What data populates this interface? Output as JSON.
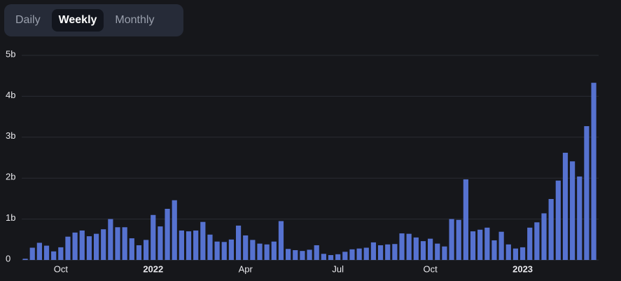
{
  "tabs": [
    "Daily",
    "Weekly",
    "Monthly"
  ],
  "chart_data": {
    "type": "bar",
    "categories": [
      null,
      null,
      null,
      null,
      null,
      "Oct",
      null,
      null,
      null,
      null,
      null,
      null,
      null,
      null,
      null,
      null,
      null,
      null,
      "2022",
      null,
      null,
      null,
      null,
      null,
      null,
      null,
      null,
      null,
      null,
      null,
      null,
      "Apr",
      null,
      null,
      null,
      null,
      null,
      null,
      null,
      null,
      null,
      null,
      null,
      null,
      "Jul",
      null,
      null,
      null,
      null,
      null,
      null,
      null,
      null,
      null,
      null,
      null,
      null,
      "Oct",
      null,
      null,
      null,
      null,
      null,
      null,
      null,
      null,
      null,
      null,
      null,
      null,
      "2023",
      null,
      null,
      null,
      null,
      null,
      null,
      null,
      null,
      null,
      null
    ],
    "values": [
      0.03,
      0.3,
      0.42,
      0.35,
      0.21,
      0.31,
      0.57,
      0.67,
      0.72,
      0.58,
      0.64,
      0.75,
      1.0,
      0.8,
      0.8,
      0.53,
      0.36,
      0.49,
      1.1,
      0.82,
      1.25,
      1.46,
      0.72,
      0.7,
      0.72,
      0.93,
      0.62,
      0.45,
      0.44,
      0.5,
      0.84,
      0.6,
      0.49,
      0.4,
      0.38,
      0.45,
      0.95,
      0.27,
      0.24,
      0.22,
      0.25,
      0.36,
      0.15,
      0.12,
      0.14,
      0.2,
      0.26,
      0.28,
      0.3,
      0.43,
      0.36,
      0.38,
      0.39,
      0.65,
      0.64,
      0.55,
      0.46,
      0.52,
      0.4,
      0.33,
      1.0,
      0.98,
      1.97,
      0.7,
      0.74,
      0.79,
      0.48,
      0.69,
      0.38,
      0.28,
      0.31,
      0.79,
      0.92,
      1.14,
      1.49,
      1.94,
      2.62,
      2.41,
      2.04,
      3.27,
      4.33
    ],
    "color": "#5672d0",
    "ylim": [
      0,
      5
    ],
    "yticks": [
      0,
      {
        "value": 1,
        "label": "1b"
      },
      {
        "value": 2,
        "label": "2b"
      },
      {
        "value": 3,
        "label": "3b"
      },
      {
        "value": 4,
        "label": "4b"
      },
      {
        "value": 5,
        "label": "5b"
      }
    ],
    "grid": true
  }
}
